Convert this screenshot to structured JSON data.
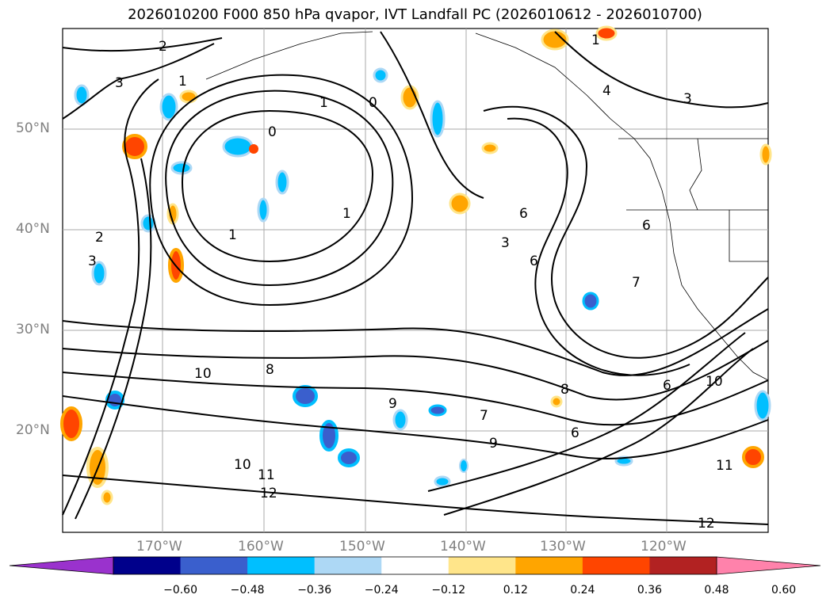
{
  "title": "2026010200 F000 850 hPa qvapor, IVT Landfall PC (2026010612 - 2026010700)",
  "lat_labels": [
    "50°N",
    "40°N",
    "30°N",
    "20°N"
  ],
  "lon_labels": [
    "170°W",
    "160°W",
    "150°W",
    "140°W",
    "130°W",
    "120°W"
  ],
  "colorbar": {
    "colors": [
      "#9a32cd",
      "#00008b",
      "#3a5fcd",
      "#00bfff",
      "#add8f5",
      "#ffffff",
      "#ffe58a",
      "#ffa500",
      "#ff4500",
      "#b22222",
      "#ff82ab"
    ],
    "ticks": [
      "−0.60",
      "−0.48",
      "−0.36",
      "−0.24",
      "−0.12",
      "0.12",
      "0.24",
      "0.36",
      "0.48",
      "0.60"
    ]
  },
  "contour_labels": [
    "2",
    "1",
    "3",
    "1",
    "4",
    "3",
    "0",
    "1",
    "0",
    "2",
    "3",
    "1",
    "6",
    "1",
    "3",
    "6",
    "7",
    "6",
    "10",
    "8",
    "9",
    "7",
    "6",
    "10",
    "11",
    "12",
    "10",
    "11",
    "12",
    "9",
    "8",
    "6"
  ]
}
